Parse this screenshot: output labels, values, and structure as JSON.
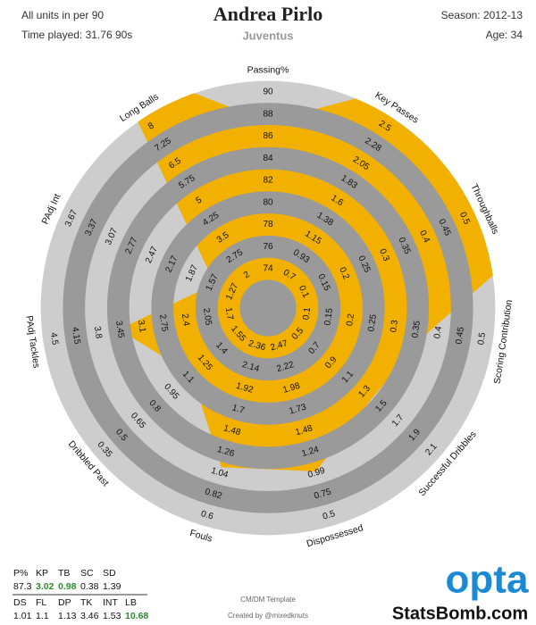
{
  "chart_data": {
    "type": "radar",
    "title": "Andrea Pirlo",
    "subtitle": "Juventus",
    "units_note": "All units in per 90",
    "time_played": "Time played: 31.76 90s",
    "season": "Season: 2012-13",
    "age": "Age: 34",
    "template": "CM/DM Template",
    "credit": "Created by @mixedknuts",
    "logo": "opta",
    "site": "StatsBomb.com",
    "color": "#f2b100",
    "highlight_color": "#2e8b2e",
    "axes": [
      {
        "name": "Passing%",
        "abbr": "P%",
        "value": 87.3,
        "ticks": [
          74,
          76,
          78,
          80,
          82,
          84,
          86,
          88,
          90
        ]
      },
      {
        "name": "Key Passes",
        "abbr": "KP",
        "value": 3.02,
        "highlight": true,
        "ticks": [
          0.7,
          0.93,
          1.15,
          1.38,
          1.6,
          1.83,
          2.05,
          2.28,
          2.5
        ]
      },
      {
        "name": "Throughballs",
        "abbr": "TB",
        "value": 0.98,
        "highlight": true,
        "ticks": [
          0.1,
          0.15,
          0.2,
          0.25,
          0.3,
          0.35,
          0.4,
          0.45,
          0.5
        ]
      },
      {
        "name": "Scoring Contribution",
        "abbr": "SC",
        "value": 0.38,
        "ticks": [
          0.1,
          0.15,
          0.2,
          0.25,
          0.3,
          0.35,
          0.4,
          0.45,
          0.5
        ]
      },
      {
        "name": "Successful Dribbles",
        "abbr": "SD",
        "value": 1.39,
        "ticks": [
          0.5,
          0.7,
          0.9,
          1.1,
          1.3,
          1.5,
          1.7,
          1.9,
          2.1
        ]
      },
      {
        "name": "Dispossessed",
        "abbr": "DS",
        "value": 1.01,
        "ticks": [
          2.47,
          2.22,
          1.98,
          1.73,
          1.48,
          1.24,
          0.99,
          0.75,
          0.5
        ]
      },
      {
        "name": "Fouls",
        "abbr": "FL",
        "value": 1.1,
        "ticks": [
          2.36,
          2.14,
          1.92,
          1.7,
          1.48,
          1.26,
          1.04,
          0.82,
          0.6
        ]
      },
      {
        "name": "Dribbled Past",
        "abbr": "DP",
        "value": 1.13,
        "ticks": [
          1.55,
          1.4,
          1.25,
          1.1,
          0.95,
          0.8,
          0.65,
          0.5,
          0.35
        ]
      },
      {
        "name": "PAdj Tackles",
        "abbr": "TK",
        "value": 3.46,
        "ticks": [
          1.7,
          2.05,
          2.4,
          2.75,
          3.1,
          3.45,
          3.8,
          4.15,
          4.5
        ]
      },
      {
        "name": "PAdj Int",
        "abbr": "INT",
        "value": 1.53,
        "ticks": [
          1.27,
          1.57,
          1.87,
          2.17,
          2.47,
          2.77,
          3.07,
          3.37,
          3.67
        ]
      },
      {
        "name": "Long Balls",
        "abbr": "LB",
        "value": 10.68,
        "highlight": true,
        "ticks": [
          2,
          2.75,
          3.5,
          4.25,
          5,
          5.75,
          6.5,
          7.25,
          8
        ]
      }
    ]
  }
}
